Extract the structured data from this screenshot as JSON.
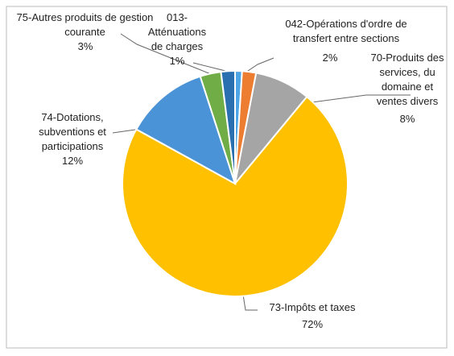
{
  "chart_data": {
    "type": "pie",
    "categories": [
      "013-Atténuations de charges",
      "042-Opérations d'ordre de transfert entre sections",
      "70-Produits des services, du domaine et ventes divers",
      "73-Impôts et taxes",
      "74-Dotations, subventions et participations",
      "75-Autres produits de gestion courante",
      null
    ],
    "values": [
      1,
      2,
      8,
      72,
      12,
      3,
      2
    ],
    "value_labels": [
      "1%",
      "2%",
      "8%",
      "72%",
      "12%",
      "3%",
      null
    ],
    "colors": [
      "#4ea6e6",
      "#ed7d31",
      "#a5a5a5",
      "#ffc000",
      "#4a93d6",
      "#70ad47",
      "#2a6fb0"
    ]
  }
}
